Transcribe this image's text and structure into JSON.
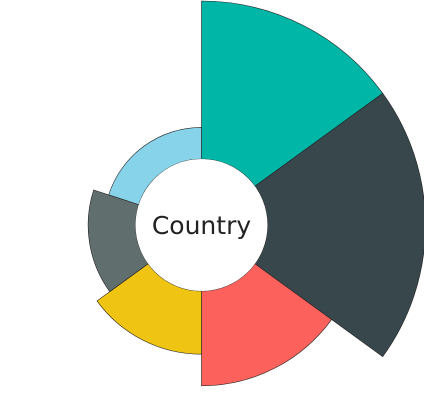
{
  "chart_data": {
    "type": "pie",
    "variant": "rose-donut",
    "center_label": "Country",
    "slices": [
      {
        "value": 10,
        "color": "#00b6a6"
      },
      {
        "value": 10,
        "color": "#37474c"
      },
      {
        "value": 6,
        "color": "#fc615b"
      },
      {
        "value": 4,
        "color": "#f0c412"
      },
      {
        "value": 3,
        "color": "#616e6e"
      },
      {
        "value": 2,
        "color": "#87d3ea"
      }
    ],
    "angles_deg": [
      54,
      72,
      54,
      54,
      54,
      72
    ]
  }
}
